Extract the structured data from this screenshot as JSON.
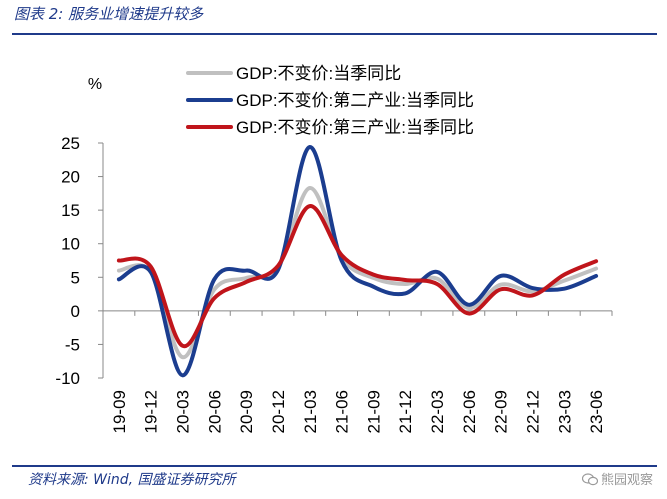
{
  "figure": {
    "title": "图表 2: 服务业增速提升较多",
    "source": "资料来源: Wind, 国盛证券研究所",
    "watermark": "熊园观察"
  },
  "icons": {
    "watermark": "wechat-icon"
  },
  "colors": {
    "accent": "#1f3a8a",
    "gdp_total": "#c0c0c0",
    "secondary_industry": "#1b3d8f",
    "tertiary_industry": "#c0151b"
  },
  "chart_data": {
    "type": "line",
    "ylabel": "%",
    "ylim": [
      -10,
      25
    ],
    "yticks": [
      25,
      20,
      15,
      10,
      5,
      0,
      -5,
      -10
    ],
    "grid": false,
    "legend_position": "top",
    "categories": [
      "19-09",
      "19-12",
      "20-03",
      "20-06",
      "20-09",
      "20-12",
      "21-03",
      "21-06",
      "21-09",
      "21-12",
      "22-03",
      "22-06",
      "22-09",
      "22-12",
      "23-03",
      "23-06"
    ],
    "series": [
      {
        "name": "GDP:不变价:当季同比",
        "color": "#c0c0c0",
        "values": [
          6.0,
          5.8,
          -6.9,
          3.2,
          4.9,
          6.4,
          18.3,
          7.9,
          4.9,
          4.0,
          4.8,
          0.4,
          3.9,
          2.9,
          4.5,
          6.3
        ]
      },
      {
        "name": "GDP:不变价:第二产业:当季同比",
        "color": "#1b3d8f",
        "values": [
          4.7,
          5.8,
          -9.6,
          4.7,
          6.0,
          6.1,
          24.4,
          7.5,
          3.6,
          2.6,
          5.8,
          0.9,
          5.2,
          3.4,
          3.3,
          5.2
        ]
      },
      {
        "name": "GDP:不变价:第三产业:当季同比",
        "color": "#c0151b",
        "values": [
          7.5,
          6.6,
          -5.2,
          1.9,
          4.3,
          6.7,
          15.6,
          8.3,
          5.4,
          4.6,
          4.0,
          -0.4,
          3.2,
          2.3,
          5.4,
          7.4
        ]
      }
    ]
  }
}
